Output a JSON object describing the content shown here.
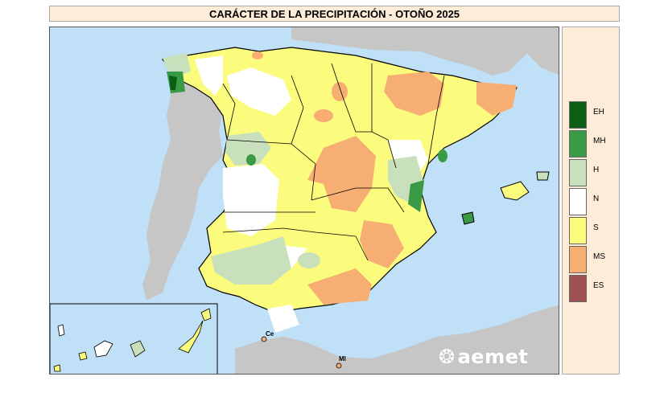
{
  "title": "CARÁCTER DE LA PRECIPITACIÓN - OTOÑO 2025",
  "legend": {
    "items": [
      {
        "code": "EH",
        "color": "#0b5e14"
      },
      {
        "code": "MH",
        "color": "#3a9a45"
      },
      {
        "code": "H",
        "color": "#c9e0bd"
      },
      {
        "code": "N",
        "color": "#ffffff"
      },
      {
        "code": "S",
        "color": "#fbfb7d"
      },
      {
        "code": "MS",
        "color": "#f6ae73"
      },
      {
        "code": "ES",
        "color": "#a05252"
      }
    ]
  },
  "map": {
    "colors": {
      "sea": "#bfe0f7",
      "land_other": "#c6c6c6",
      "borders": "#000000"
    },
    "cities": [
      {
        "label": "Ce"
      },
      {
        "label": "Ml"
      }
    ]
  },
  "logo": {
    "text": "aemet",
    "icon": "aemet-logo-icon"
  }
}
